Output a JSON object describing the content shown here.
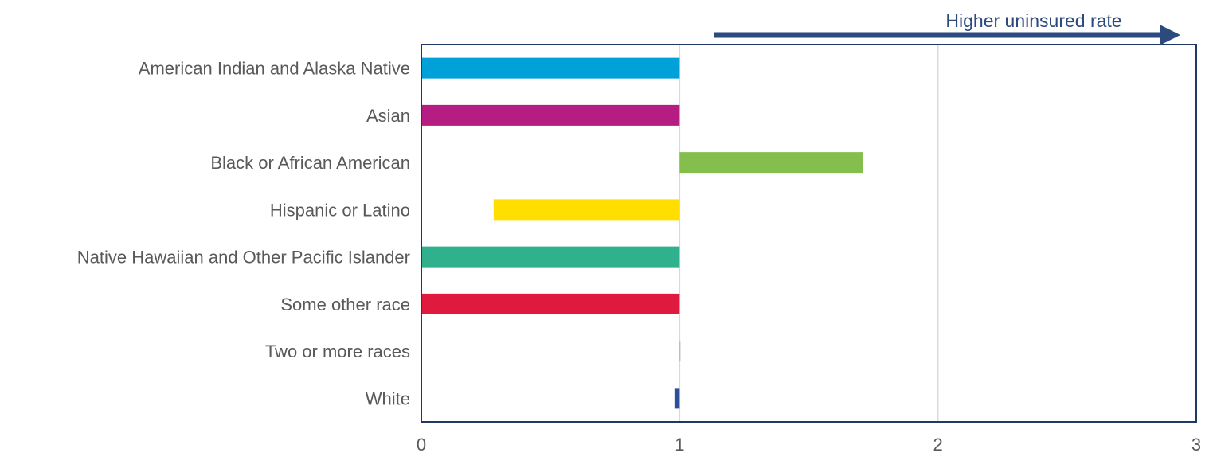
{
  "chart_data": {
    "type": "bar",
    "orientation": "horizontal",
    "categories": [
      "American Indian and Alaska Native",
      "Asian",
      "Black or African American",
      "Hispanic or Latino",
      "Native Hawaiian and Other Pacific Islander",
      "Some other race",
      "Two or more races",
      "White"
    ],
    "bars": [
      {
        "start": 0,
        "end": 1
      },
      {
        "start": 0,
        "end": 1
      },
      {
        "start": 1,
        "end": 1.71
      },
      {
        "start": 0.28,
        "end": 1
      },
      {
        "start": 0,
        "end": 1
      },
      {
        "start": 0,
        "end": 1
      },
      {
        "start": 1,
        "end": 1
      },
      {
        "start": 0.98,
        "end": 1
      }
    ],
    "colors": [
      "#00a1d9",
      "#b51d83",
      "#84bf4e",
      "#ffde00",
      "#2fb18e",
      "#e0193e",
      "#b0b0b0",
      "#2e4d9b"
    ],
    "xlim": [
      0,
      3
    ],
    "xticks": [
      "0",
      "1",
      "2",
      "3"
    ],
    "grid": true,
    "annotation": "Higher uninsured rate",
    "annotation_color": "#2b4a7e",
    "frame_color": "#1f3864",
    "grid_color": "#d9d9d9",
    "label_color": "#595959"
  }
}
